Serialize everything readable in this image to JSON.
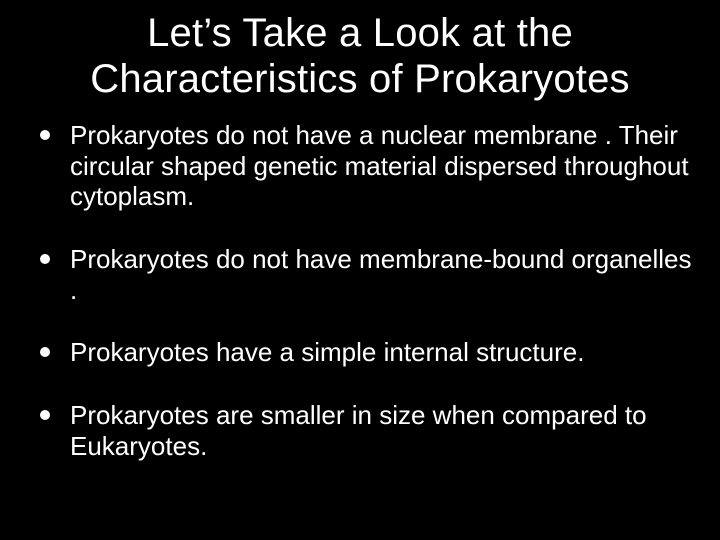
{
  "slide": {
    "title": "Let’s Take a Look at the Characteristics of Prokaryotes",
    "bullets": [
      "Prokaryotes  do not have a nuclear membrane . Their circular shaped genetic material dispersed throughout cytoplasm.",
      "Prokaryotes do not have membrane-bound organelles .",
      "Prokaryotes have a simple internal structure.",
      "Prokaryotes are smaller in size when compared to Eukaryotes."
    ],
    "background_color": "#000000",
    "text_color": "#ffffff",
    "title_fontsize": 40,
    "body_fontsize": 26,
    "bullet_marker": "disc",
    "bullet_color": "#ffffff"
  }
}
